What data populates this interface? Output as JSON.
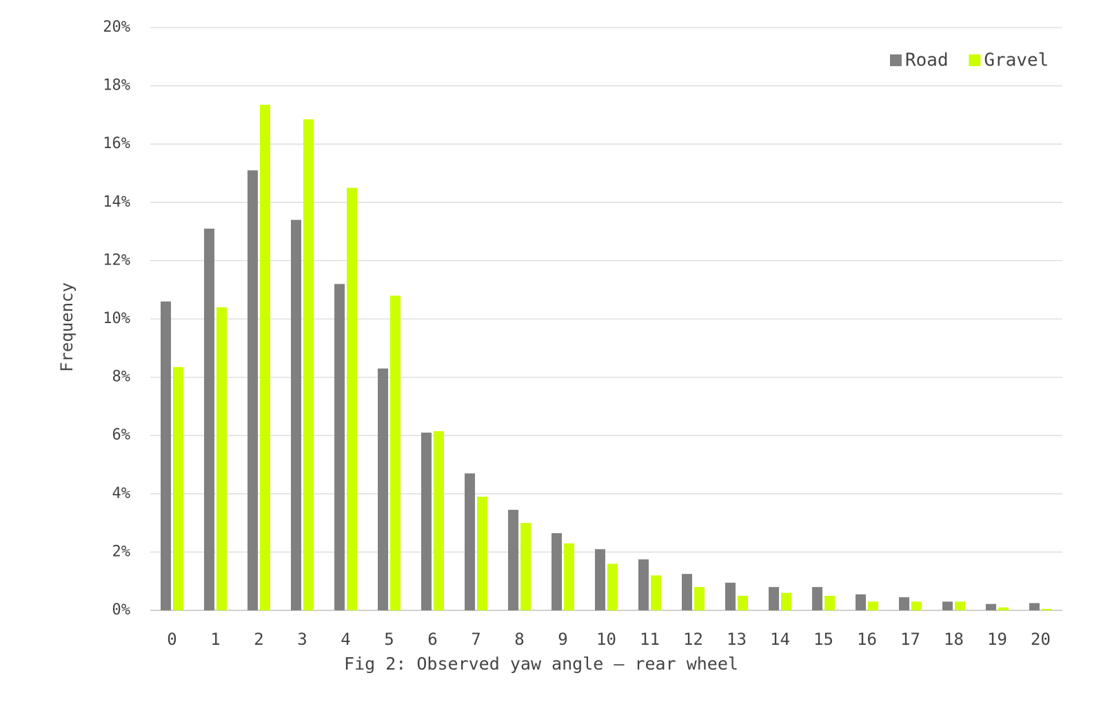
{
  "chart_data": {
    "type": "bar",
    "title": "Fig 2: Observed yaw angle – rear wheel",
    "xlabel": "",
    "ylabel": "Frequency",
    "ylim": [
      0,
      20
    ],
    "y_ticks": [
      "0%",
      "2%",
      "4%",
      "6%",
      "8%",
      "10%",
      "12%",
      "14%",
      "16%",
      "18%",
      "20%"
    ],
    "grid": true,
    "legend_position": "top-right",
    "categories": [
      "0",
      "1",
      "2",
      "3",
      "4",
      "5",
      "6",
      "7",
      "8",
      "9",
      "10",
      "11",
      "12",
      "13",
      "14",
      "15",
      "16",
      "17",
      "18",
      "19",
      "20"
    ],
    "series": [
      {
        "name": "Road",
        "color": "#808080",
        "values": [
          10.6,
          13.1,
          15.1,
          13.4,
          11.2,
          8.3,
          6.1,
          4.7,
          3.45,
          2.65,
          2.1,
          1.75,
          1.25,
          0.95,
          0.8,
          0.8,
          0.55,
          0.45,
          0.3,
          0.22,
          0.25
        ]
      },
      {
        "name": "Gravel",
        "color": "#ccff00",
        "values": [
          8.35,
          10.4,
          17.35,
          16.85,
          14.5,
          10.8,
          6.15,
          3.9,
          3.0,
          2.3,
          1.6,
          1.2,
          0.8,
          0.5,
          0.6,
          0.5,
          0.3,
          0.3,
          0.3,
          0.1,
          0.05
        ]
      }
    ]
  }
}
